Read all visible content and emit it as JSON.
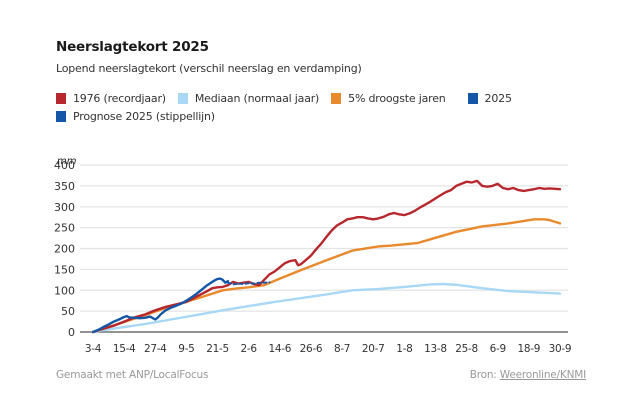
{
  "title": "Neerslagtekort 2025",
  "subtitle": "Lopend neerslagtekort (verschil neerslag en verdamping)",
  "legend": [
    {
      "label": "1976 (recordjaar)",
      "color": "#b7282e"
    },
    {
      "label": "Mediaan (normaal jaar)",
      "color": "#a8d8f5"
    },
    {
      "label": "5% droogste jaren",
      "color": "#e8892c"
    },
    {
      "label": "2025",
      "color": "#1457a6"
    },
    {
      "label": "Prognose 2025 (stippellijn)",
      "color": "#1457a6"
    }
  ],
  "footer": {
    "made_with": "Gemaakt met ANP/LocalFocus",
    "source_prefix": "Bron:",
    "source_link": "Weeronline/KNMI"
  },
  "chart_data": {
    "type": "line",
    "title": "Neerslagtekort 2025",
    "subtitle": "Lopend neerslagtekort (verschil neerslag en verdamping)",
    "ylabel": "mm",
    "xlabel": "",
    "ylim": [
      0,
      400
    ],
    "yticks": [
      0,
      50,
      100,
      150,
      200,
      250,
      300,
      350,
      400
    ],
    "x_unit": "days since 3-4",
    "xlim": [
      0,
      180
    ],
    "xticks": [
      {
        "day": 0,
        "label": "3-4"
      },
      {
        "day": 12,
        "label": "15-4"
      },
      {
        "day": 24,
        "label": "27-4"
      },
      {
        "day": 36,
        "label": "9-5"
      },
      {
        "day": 48,
        "label": "21-5"
      },
      {
        "day": 60,
        "label": "2-6"
      },
      {
        "day": 72,
        "label": "14-6"
      },
      {
        "day": 84,
        "label": "26-6"
      },
      {
        "day": 96,
        "label": "8-7"
      },
      {
        "day": 108,
        "label": "20-7"
      },
      {
        "day": 120,
        "label": "1-8"
      },
      {
        "day": 132,
        "label": "13-8"
      },
      {
        "day": 144,
        "label": "25-8"
      },
      {
        "day": 156,
        "label": "6-9"
      },
      {
        "day": 168,
        "label": "18-9"
      },
      {
        "day": 180,
        "label": "30-9"
      }
    ],
    "grid": true,
    "legend_position": "top-left",
    "series": [
      {
        "name": "1976 (recordjaar)",
        "color": "#b7282e",
        "dashed": false,
        "x": [
          0,
          4,
          8,
          12,
          16,
          20,
          24,
          28,
          32,
          36,
          40,
          44,
          46,
          48,
          50,
          52,
          54,
          56,
          58,
          60,
          62,
          64,
          66,
          68,
          70,
          72,
          74,
          76,
          78,
          79,
          80,
          82,
          84,
          86,
          88,
          90,
          92,
          94,
          96,
          98,
          100,
          102,
          104,
          106,
          108,
          110,
          112,
          114,
          116,
          118,
          120,
          122,
          124,
          126,
          128,
          130,
          132,
          134,
          136,
          138,
          140,
          142,
          144,
          146,
          148,
          150,
          152,
          154,
          156,
          158,
          160,
          162,
          164,
          166,
          168,
          170,
          172,
          174,
          176,
          178,
          180
        ],
        "y": [
          0,
          8,
          15,
          25,
          35,
          42,
          52,
          60,
          66,
          72,
          85,
          98,
          105,
          107,
          108,
          112,
          120,
          116,
          118,
          120,
          115,
          112,
          125,
          138,
          145,
          155,
          165,
          170,
          172,
          160,
          162,
          172,
          183,
          198,
          212,
          228,
          243,
          255,
          262,
          270,
          272,
          275,
          275,
          272,
          270,
          272,
          276,
          282,
          285,
          282,
          280,
          284,
          290,
          298,
          305,
          312,
          320,
          328,
          335,
          340,
          350,
          355,
          360,
          358,
          362,
          350,
          348,
          350,
          355,
          345,
          342,
          345,
          340,
          338,
          340,
          342,
          345,
          343,
          344,
          343,
          342
        ]
      },
      {
        "name": "Mediaan (normaal jaar)",
        "color": "#a8d8f5",
        "dashed": false,
        "x": [
          0,
          10,
          20,
          30,
          40,
          50,
          60,
          70,
          80,
          90,
          100,
          110,
          120,
          130,
          135,
          140,
          150,
          160,
          170,
          180
        ],
        "y": [
          0,
          10,
          19,
          30,
          41,
          52,
          62,
          72,
          81,
          90,
          100,
          103,
          108,
          114,
          115,
          113,
          105,
          98,
          95,
          92
        ]
      },
      {
        "name": "5% droogste jaren",
        "color": "#e8892c",
        "dashed": false,
        "x": [
          0,
          10,
          20,
          30,
          40,
          50,
          55,
          60,
          66,
          72,
          80,
          90,
          100,
          110,
          115,
          120,
          125,
          130,
          140,
          150,
          160,
          165,
          170,
          174,
          176,
          180
        ],
        "y": [
          0,
          20,
          40,
          62,
          80,
          100,
          104,
          107,
          112,
          128,
          148,
          172,
          195,
          205,
          207,
          210,
          213,
          222,
          240,
          253,
          260,
          265,
          270,
          270,
          268,
          260
        ]
      },
      {
        "name": "2025",
        "color": "#1457a6",
        "dashed": false,
        "x": [
          0,
          2,
          4,
          6,
          8,
          10,
          12,
          13,
          14,
          16,
          18,
          20,
          22,
          24,
          25,
          26,
          28,
          30,
          32,
          34,
          36,
          38,
          40,
          42,
          44,
          46,
          47,
          48,
          49,
          50,
          51,
          52
        ],
        "y": [
          0,
          5,
          12,
          18,
          25,
          30,
          36,
          38,
          35,
          34,
          33,
          34,
          37,
          30,
          35,
          42,
          52,
          58,
          63,
          68,
          75,
          83,
          92,
          102,
          112,
          120,
          124,
          127,
          128,
          125,
          118,
          122
        ]
      },
      {
        "name": "Prognose 2025 (stippellijn)",
        "color": "#1457a6",
        "dashed": true,
        "x": [
          52,
          54,
          56,
          58,
          60,
          62,
          64,
          66,
          68
        ],
        "y": [
          118,
          114,
          116,
          115,
          117,
          116,
          118,
          118,
          119
        ]
      }
    ]
  }
}
